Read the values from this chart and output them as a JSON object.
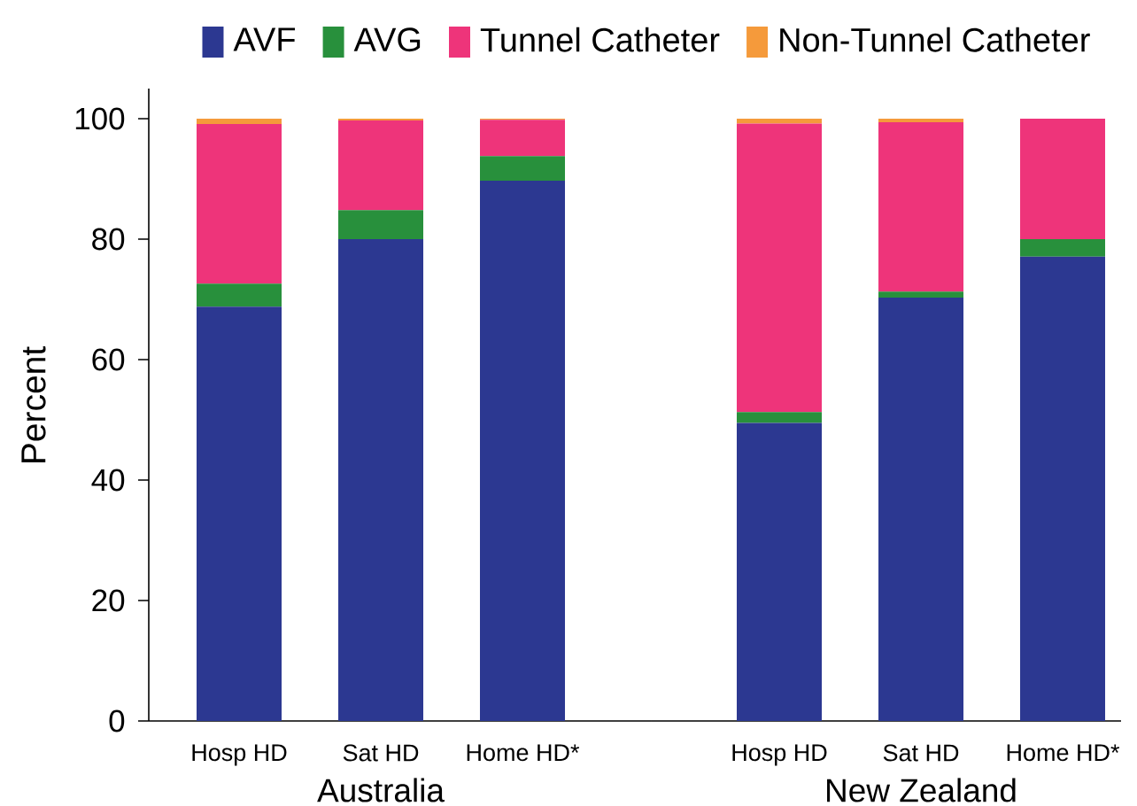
{
  "chart_data": [
    {
      "type": "bar",
      "stacked": true,
      "xlabel": "Australia",
      "ylabel": "Percent",
      "categories": [
        "Hosp HD",
        "Sat HD",
        "Home HD*"
      ],
      "series": [
        {
          "name": "AVF",
          "color": "#2c3891",
          "values": [
            68.8,
            80.0,
            89.7
          ]
        },
        {
          "name": "AVG",
          "color": "#28903c",
          "values": [
            3.8,
            4.8,
            4.1
          ]
        },
        {
          "name": "Tunnel Catheter",
          "color": "#ee347a",
          "values": [
            26.5,
            14.9,
            6.0
          ]
        },
        {
          "name": "Non-Tunnel Catheter",
          "color": "#f59a3b",
          "values": [
            0.9,
            0.3,
            0.2
          ]
        }
      ],
      "ylim": [
        0,
        105
      ],
      "yticks": [
        0,
        20,
        40,
        60,
        80,
        100
      ],
      "legend": "top"
    },
    {
      "type": "bar",
      "stacked": true,
      "xlabel": "New Zealand",
      "categories": [
        "Hosp HD",
        "Sat HD",
        "Home HD*"
      ],
      "series": [
        {
          "color": "#2c3891",
          "values": [
            49.5,
            70.3,
            77.1
          ]
        },
        {
          "color": "#28903c",
          "values": [
            1.8,
            1.0,
            2.9
          ]
        },
        {
          "color": "#ee347a",
          "values": [
            47.9,
            28.1,
            20.0
          ]
        },
        {
          "color": "#f59a3b",
          "values": [
            0.8,
            0.6,
            null
          ]
        }
      ],
      "ylim": [
        0,
        100
      ],
      "yticks": [
        0,
        20,
        40,
        60,
        80,
        100
      ],
      "tick_labels": "x"
    }
  ]
}
